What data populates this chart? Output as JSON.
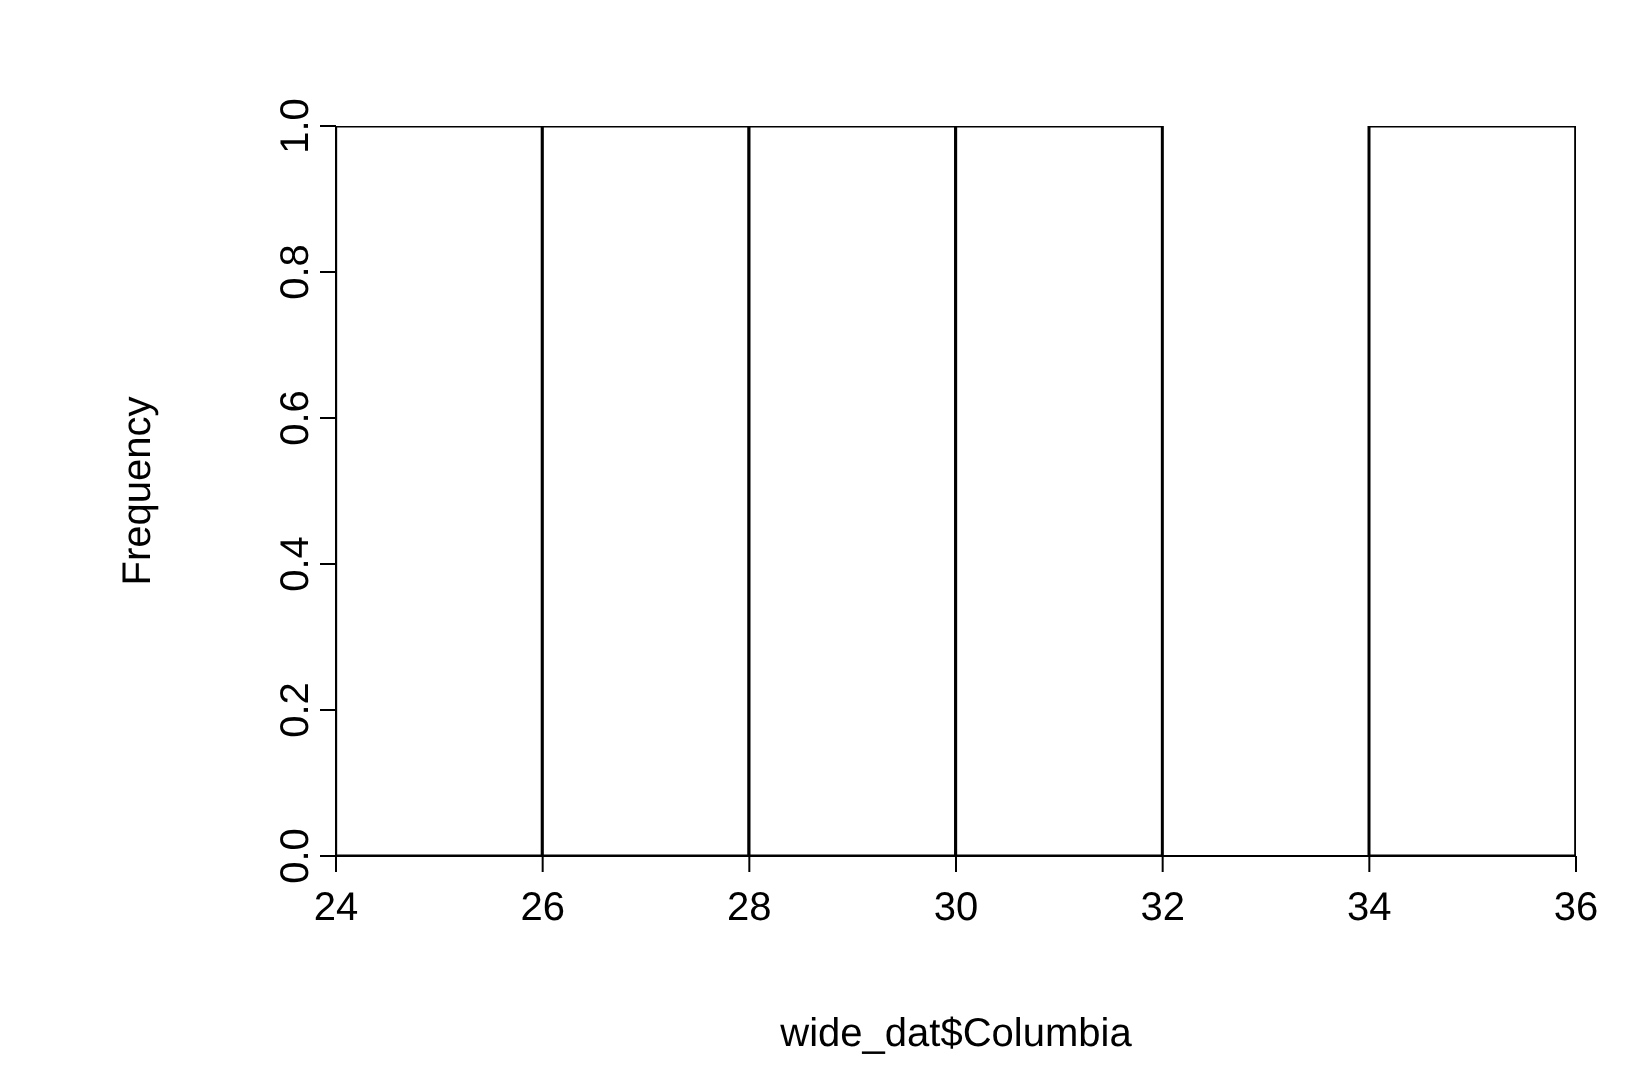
{
  "chart_data": {
    "type": "histogram",
    "xlabel": "wide_dat$Columbia",
    "ylabel": "Frequency",
    "bins": [
      24,
      26,
      28,
      30,
      32,
      34,
      36
    ],
    "values": [
      1,
      1,
      1,
      1,
      0,
      1
    ],
    "color": "#ffffff",
    "xlim": [
      24,
      36
    ],
    "xticks": [
      24,
      26,
      28,
      30,
      32,
      34,
      36
    ],
    "ylim": [
      0,
      1
    ],
    "yticks": [
      {
        "value": 0,
        "label": "0.0"
      },
      {
        "value": 0.2,
        "label": "0.2"
      },
      {
        "value": 0.4,
        "label": "0.4"
      },
      {
        "value": 0.6,
        "label": "0.6"
      },
      {
        "value": 0.8,
        "label": "0.8"
      },
      {
        "value": 1,
        "label": "1.0"
      }
    ]
  }
}
